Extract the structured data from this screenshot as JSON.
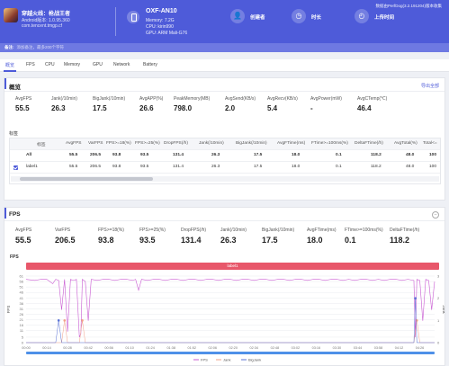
{
  "header": {
    "app_name": "穿越火线：枪战王者",
    "app_sub": "Android版本: 1.0.95.360",
    "app_package": "com.tencent.tmgp.cf",
    "device_model": "OXF-AN10",
    "memory": "Memory: 7.2G",
    "cpu": "CPU: kirin990",
    "gpu": "GPU: ARM Mali-G76",
    "creator_label": "创建者",
    "duration_label": "时长",
    "upload_label": "上传时间",
    "version_text": "数据由PerfDog(3.2.191204)版本收集"
  },
  "remark": {
    "label": "备注:",
    "placeholder": "添加备注，最多200个字符"
  },
  "tabs": [
    "概览",
    "FPS",
    "CPU",
    "Memory",
    "GPU",
    "Network",
    "Battery"
  ],
  "overview": {
    "title": "概览",
    "export_label": "导出全部",
    "metrics": [
      {
        "name": "AvgFPS",
        "value": "55.5"
      },
      {
        "name": "Jank(/10min)",
        "value": "26.3"
      },
      {
        "name": "BigJank(/10min)",
        "value": "17.5"
      },
      {
        "name": "AvgAPP(%)",
        "value": "26.6"
      },
      {
        "name": "PeakMemory(MB)",
        "value": "798.0"
      },
      {
        "name": "AvgSend(KB/s)",
        "value": "2.0"
      },
      {
        "name": "AvgRecv(KB/s)",
        "value": "5.4"
      },
      {
        "name": "AvgPower(mW)",
        "value": "-"
      },
      {
        "name": "AvgCTemp(℃)",
        "value": "46.4"
      }
    ],
    "label_title": "标签",
    "table": {
      "headers": [
        "标签",
        "AvgFPS",
        "VarFPS",
        "FPS>=18(%)",
        "FPS>=25(%)",
        "DropFPS(/h)",
        "Jank(/10min)",
        "BigJank(/10min)",
        "AvgFTime(ms)",
        "FTime>=100ms(%)",
        "DeltaFTime(/h)",
        "AvgTotal(%)",
        "Total<="
      ],
      "rows": [
        [
          "All",
          "55.5",
          "206.5",
          "93.8",
          "93.5",
          "131.4",
          "26.3",
          "17.5",
          "18.0",
          "0.1",
          "118.2",
          "48.0",
          "100"
        ],
        [
          "label1",
          "55.5",
          "206.5",
          "93.8",
          "93.5",
          "131.4",
          "26.3",
          "17.5",
          "18.0",
          "0.1",
          "118.2",
          "48.0",
          "100"
        ]
      ]
    }
  },
  "fps_panel": {
    "title": "FPS",
    "collapse_icon": "minus-circle-icon",
    "metrics": [
      {
        "name": "AvgFPS",
        "value": "55.5"
      },
      {
        "name": "VarFPS",
        "value": "206.5"
      },
      {
        "name": "FPS>=18(%)",
        "value": "93.8"
      },
      {
        "name": "FPS>=25(%)",
        "value": "93.5"
      },
      {
        "name": "DropFPS(/h)",
        "value": "131.4"
      },
      {
        "name": "Jank(/10min)",
        "value": "26.3"
      },
      {
        "name": "BigJank(/10min)",
        "value": "17.5"
      },
      {
        "name": "AvgFTime(ms)",
        "value": "18.0"
      },
      {
        "name": "FTime>=100ms(%)",
        "value": "0.1"
      },
      {
        "name": "DeltaFTime(/h)",
        "value": "118.2"
      }
    ],
    "chart_label": "FPS",
    "label_bar": "label1"
  },
  "chart_data": {
    "type": "line",
    "ylabel": "FPS",
    "ylabel_right": "Jank",
    "ylim": [
      0,
      61
    ],
    "yticks": [
      0,
      5,
      11,
      16,
      21,
      26,
      31,
      36,
      41,
      46,
      51,
      56,
      61
    ],
    "ylim_right": [
      0,
      3
    ],
    "yticks_right": [
      0,
      1,
      2,
      3
    ],
    "xticks": [
      "00:00",
      "00:14",
      "00:28",
      "00:42",
      "00:56",
      "01:10",
      "01:24",
      "01:38",
      "01:52",
      "02:06",
      "02:20",
      "02:34",
      "02:48",
      "03:02",
      "03:16",
      "03:30",
      "03:44",
      "03:58",
      "04:12",
      "04:26"
    ],
    "x_range_sec": [
      0,
      276
    ],
    "grid": true,
    "legend_position": "bottom",
    "colors": {
      "fps": "#c95bd2",
      "jank": "#f2a28a",
      "bigjank": "#5a73d6"
    },
    "series": [
      {
        "name": "FPS",
        "values": [
          [
            0,
            58
          ],
          [
            6,
            57
          ],
          [
            10,
            58
          ],
          [
            14,
            58
          ],
          [
            18,
            54
          ],
          [
            20,
            58
          ],
          [
            22,
            57
          ],
          [
            24,
            30
          ],
          [
            26,
            58
          ],
          [
            28,
            10
          ],
          [
            30,
            58
          ],
          [
            32,
            57
          ],
          [
            34,
            58
          ],
          [
            36,
            5
          ],
          [
            37,
            8
          ],
          [
            38,
            58
          ],
          [
            40,
            56
          ],
          [
            42,
            20
          ],
          [
            44,
            58
          ],
          [
            48,
            57
          ],
          [
            52,
            58
          ],
          [
            56,
            58
          ],
          [
            60,
            57
          ],
          [
            64,
            58
          ],
          [
            68,
            58
          ],
          [
            72,
            57
          ],
          [
            74,
            58
          ],
          [
            76,
            48
          ],
          [
            78,
            58
          ],
          [
            82,
            57
          ],
          [
            86,
            58
          ],
          [
            90,
            58
          ],
          [
            94,
            57
          ],
          [
            98,
            58
          ],
          [
            102,
            58
          ],
          [
            106,
            57
          ],
          [
            110,
            58
          ],
          [
            114,
            58
          ],
          [
            118,
            57
          ],
          [
            122,
            58
          ],
          [
            126,
            58
          ],
          [
            130,
            57
          ],
          [
            134,
            58
          ],
          [
            138,
            58
          ],
          [
            142,
            57
          ],
          [
            146,
            58
          ],
          [
            150,
            58
          ],
          [
            154,
            57
          ],
          [
            158,
            58
          ],
          [
            162,
            58
          ],
          [
            166,
            57
          ],
          [
            170,
            58
          ],
          [
            174,
            58
          ],
          [
            178,
            57
          ],
          [
            182,
            58
          ],
          [
            186,
            58
          ],
          [
            190,
            57
          ],
          [
            194,
            58
          ],
          [
            198,
            58
          ],
          [
            202,
            57
          ],
          [
            206,
            58
          ],
          [
            210,
            58
          ],
          [
            214,
            57
          ],
          [
            218,
            58
          ],
          [
            222,
            57
          ],
          [
            226,
            58
          ],
          [
            230,
            58
          ],
          [
            234,
            57
          ],
          [
            238,
            58
          ],
          [
            242,
            57
          ],
          [
            246,
            58
          ],
          [
            250,
            58
          ],
          [
            254,
            57
          ],
          [
            258,
            58
          ],
          [
            262,
            57
          ],
          [
            263,
            5
          ],
          [
            264,
            58
          ],
          [
            266,
            57
          ],
          [
            268,
            20
          ],
          [
            270,
            58
          ],
          [
            272,
            57
          ],
          [
            274,
            30
          ],
          [
            276,
            56
          ]
        ]
      },
      {
        "name": "Jank",
        "values": [
          [
            0,
            0
          ],
          [
            24,
            0
          ],
          [
            26,
            1
          ],
          [
            28,
            0
          ],
          [
            36,
            0
          ],
          [
            38,
            1
          ],
          [
            40,
            0
          ],
          [
            262,
            0
          ],
          [
            264,
            1
          ],
          [
            266,
            0
          ],
          [
            276,
            0
          ]
        ]
      },
      {
        "name": "BigJank",
        "values": [
          [
            0,
            0
          ],
          [
            20,
            0
          ],
          [
            22,
            1
          ],
          [
            24,
            0
          ],
          [
            262,
            0
          ],
          [
            263,
            2
          ],
          [
            264,
            0
          ],
          [
            276,
            0
          ]
        ]
      }
    ]
  }
}
